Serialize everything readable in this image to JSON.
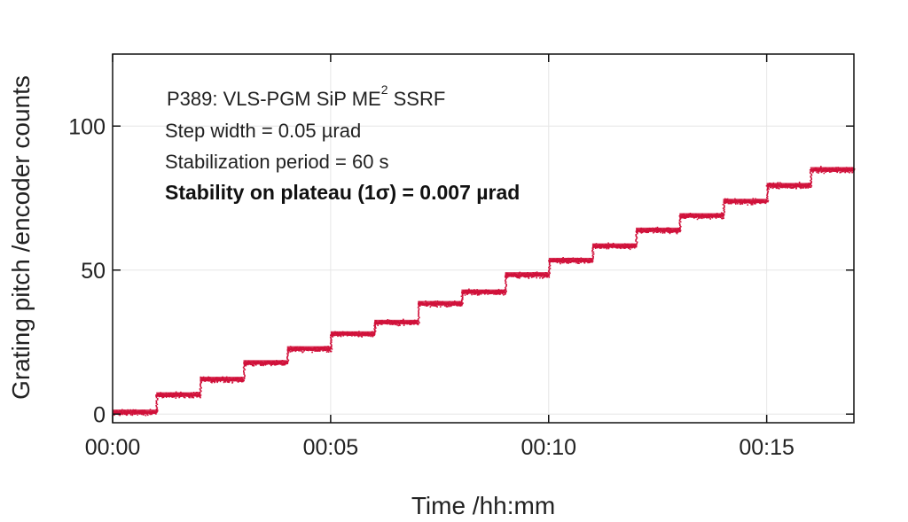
{
  "chart_data": {
    "type": "scatter",
    "xlabel": "Time /hh:mm",
    "ylabel": "Grating pitch /encoder counts",
    "xlim": [
      0,
      17
    ],
    "ylim": [
      -3,
      125
    ],
    "x_ticks": [
      {
        "value": 0,
        "label": "00:00"
      },
      {
        "value": 5,
        "label": "00:05"
      },
      {
        "value": 10,
        "label": "00:10"
      },
      {
        "value": 15,
        "label": "00:15"
      }
    ],
    "y_ticks": [
      {
        "value": 0,
        "label": "0"
      },
      {
        "value": 50,
        "label": "50"
      },
      {
        "value": 100,
        "label": "100"
      }
    ],
    "grid": true,
    "marker_color": "#d0103a",
    "annotations": {
      "line1_main": "P389: VLS-PGM SiP ME",
      "line1_sup": "2",
      "line1_end": " SSRF",
      "line2": "Step width = 0.05 µrad",
      "line3": "Stabilization period = 60 s",
      "line4": "Stability on plateau (1σ) = 0.007 µrad"
    },
    "plateaus": [
      {
        "x_start": 0,
        "x_end": 1,
        "y": 0.8
      },
      {
        "x_start": 1,
        "x_end": 2,
        "y": 6.8
      },
      {
        "x_start": 2,
        "x_end": 3,
        "y": 12.2
      },
      {
        "x_start": 3,
        "x_end": 4,
        "y": 18.0
      },
      {
        "x_start": 4,
        "x_end": 5,
        "y": 22.8
      },
      {
        "x_start": 5,
        "x_end": 6,
        "y": 28.0
      },
      {
        "x_start": 6,
        "x_end": 7,
        "y": 32.0
      },
      {
        "x_start": 7,
        "x_end": 8,
        "y": 38.5
      },
      {
        "x_start": 8,
        "x_end": 9,
        "y": 42.5
      },
      {
        "x_start": 9,
        "x_end": 10,
        "y": 48.5
      },
      {
        "x_start": 10,
        "x_end": 11,
        "y": 53.5
      },
      {
        "x_start": 11,
        "x_end": 12,
        "y": 58.5
      },
      {
        "x_start": 12,
        "x_end": 13,
        "y": 64.0
      },
      {
        "x_start": 13,
        "x_end": 14,
        "y": 69.0
      },
      {
        "x_start": 14,
        "x_end": 15,
        "y": 74.0
      },
      {
        "x_start": 15,
        "x_end": 16,
        "y": 79.5
      },
      {
        "x_start": 16,
        "x_end": 17,
        "y": 85.0
      }
    ]
  }
}
